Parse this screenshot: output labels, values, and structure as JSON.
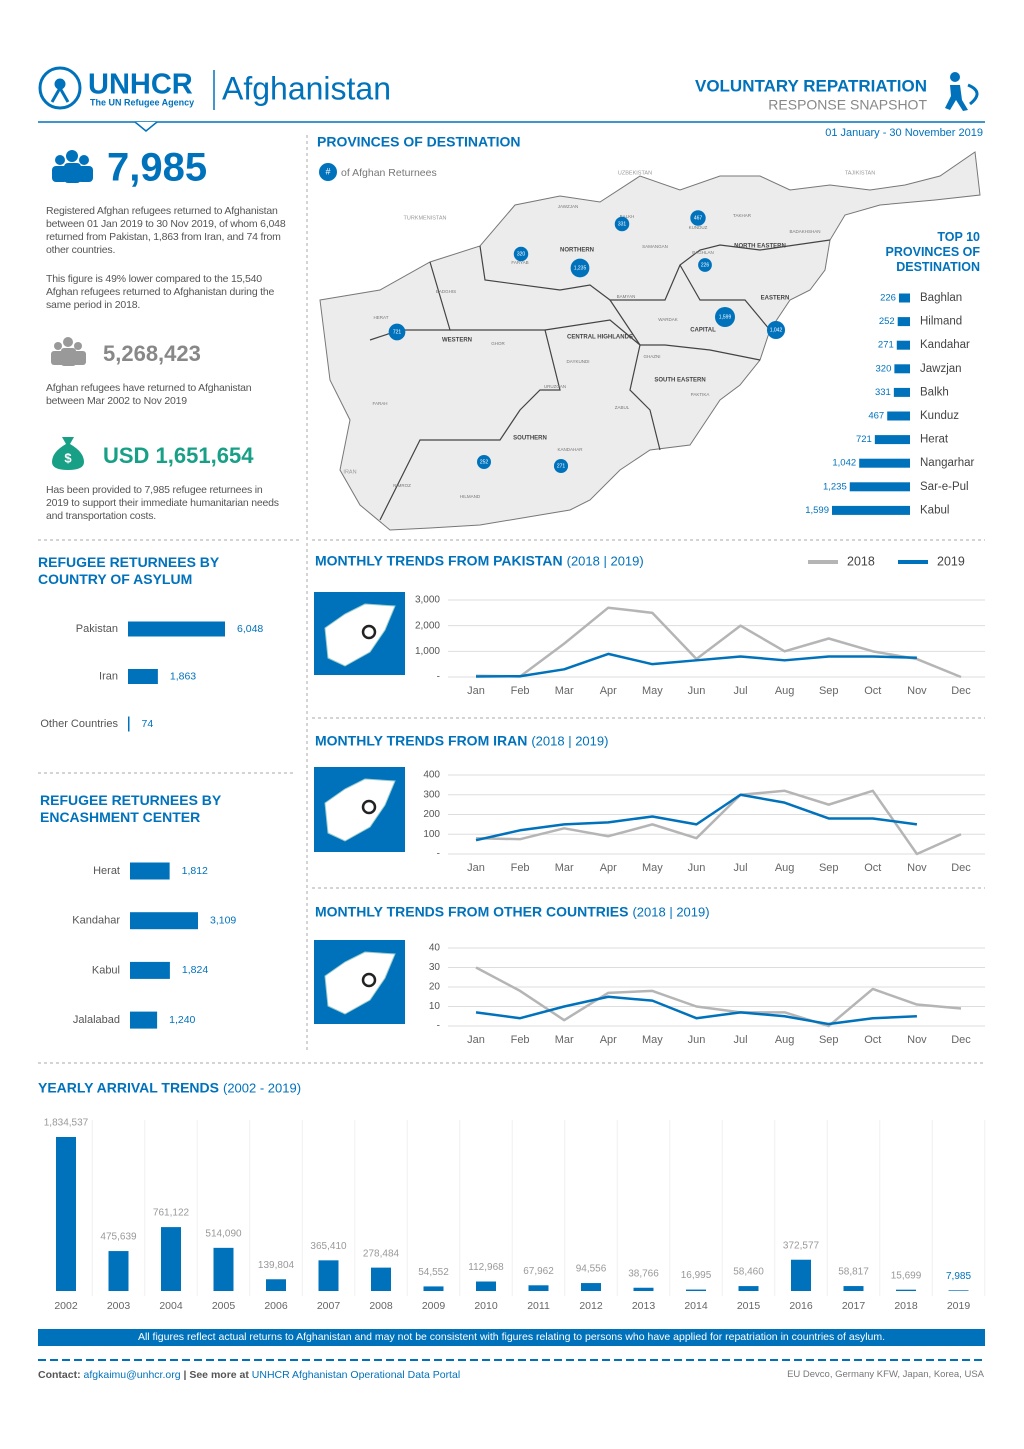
{
  "header": {
    "logo": "UNHCR",
    "logo_sub": "The UN Refugee Agency",
    "country": "Afghanistan",
    "report_title": "VOLUNTARY REPATRIATION",
    "report_subtitle": "RESPONSE SNAPSHOT",
    "period": "01 January - 30 November 2019"
  },
  "summary": [
    {
      "value": "7,985",
      "paragraphs": [
        "Registered Afghan refugees returned to Afghanistan between 01 Jan 2019 to 30 Nov 2019, of whom 6,048 returned from Pakistan, 1,863 from Iran, and 74 from other countries.",
        "This figure is 49% lower compared to the 15,540 Afghan refugees returned to Afghanistan during the same period in 2018."
      ]
    },
    {
      "value": "5,268,423",
      "paragraphs": [
        "Afghan refugees have returned to Afghanistan between Mar 2002 to Nov 2019"
      ]
    },
    {
      "value": "USD 1,651,654",
      "paragraphs": [
        "Has been provided to 7,985 refugee returnees in 2019 to support their immediate humanitarian needs and transportation costs."
      ]
    }
  ],
  "map": {
    "title": "PROVINCES OF DESTINATION",
    "legend_symbol": "#",
    "legend_text": "of Afghan Returnees",
    "countries": [
      "UZBEKISTAN",
      "TAJIKISTAN",
      "TURKMENISTAN",
      "IRAN"
    ],
    "regions": [
      "NORTHERN",
      "NORTH EASTERN",
      "WESTERN",
      "CENTRAL HIGHLANDS",
      "CAPITAL",
      "EASTERN",
      "SOUTH EASTERN",
      "SOUTHERN"
    ],
    "provinces": [
      "HERAT",
      "FARAH",
      "NIMROZ",
      "HILMAND",
      "KANDAHAR",
      "GHOR",
      "BADGHIS",
      "FARYAB",
      "JAWZJAN",
      "BALKH",
      "SAMANGAN",
      "BAGHLAN",
      "KUNDUZ",
      "TAKHAR",
      "BADAKHSHAN",
      "BAMYAN",
      "DAYKUNDI",
      "URUZGAN",
      "ZABUL",
      "GHAZNI",
      "PAKTIKA",
      "WARDAK"
    ]
  },
  "chart_data": [
    {
      "type": "bar",
      "orientation": "horizontal",
      "title": "TOP 10 PROVINCES OF DESTINATION",
      "color": "#0072bc",
      "categories": [
        "Baghlan",
        "Hilmand",
        "Kandahar",
        "Jawzjan",
        "Balkh",
        "Kunduz",
        "Herat",
        "Nangarhar",
        "Sar-e-Pul",
        "Kabul"
      ],
      "values": [
        226,
        252,
        271,
        320,
        331,
        467,
        721,
        1042,
        1235,
        1599
      ],
      "value_labels": [
        "226",
        "252",
        "271",
        "320",
        "331",
        "467",
        "721",
        "1,042",
        "1,235",
        "1,599"
      ]
    },
    {
      "type": "bar",
      "orientation": "horizontal",
      "title": "REFUGEE RETURNEES BY COUNTRY OF ASYLUM",
      "color": "#0072bc",
      "categories": [
        "Pakistan",
        "Iran",
        "Other Countries"
      ],
      "values": [
        6048,
        1863,
        74
      ],
      "value_labels": [
        "6,048",
        "1,863",
        "74"
      ]
    },
    {
      "type": "bar",
      "orientation": "horizontal",
      "title": "REFUGEE RETURNEES BY ENCASHMENT CENTER",
      "color": "#0072bc",
      "categories": [
        "Herat",
        "Kandahar",
        "Kabul",
        "Jalalabad"
      ],
      "values": [
        1812,
        3109,
        1824,
        1240
      ],
      "value_labels": [
        "1,812",
        "3,109",
        "1,824",
        "1,240"
      ]
    },
    {
      "type": "line",
      "title": "MONTHLY TRENDS FROM PAKISTAN",
      "title_suffix": "(2018 | 2019)",
      "legend": true,
      "grid": true,
      "categories": [
        "Jan",
        "Feb",
        "Mar",
        "Apr",
        "May",
        "Jun",
        "Jul",
        "Aug",
        "Sep",
        "Oct",
        "Nov",
        "Dec"
      ],
      "series": [
        {
          "name": "2018",
          "color": "#b5b5b5",
          "values": [
            50,
            20,
            1300,
            2700,
            2500,
            700,
            2000,
            1000,
            1500,
            1000,
            700,
            0
          ]
        },
        {
          "name": "2019",
          "color": "#0072bc",
          "values": [
            20,
            30,
            300,
            900,
            500,
            650,
            800,
            650,
            800,
            800,
            750,
            null
          ]
        }
      ],
      "ylim": [
        0,
        3000
      ],
      "yticks": [
        {
          "value": 0,
          "label": "-"
        },
        {
          "value": 1000,
          "label": "1,000"
        },
        {
          "value": 2000,
          "label": "2,000"
        },
        {
          "value": 3000,
          "label": "3,000"
        }
      ]
    },
    {
      "type": "line",
      "title": "MONTHLY TRENDS FROM IRAN",
      "title_suffix": "(2018 | 2019)",
      "legend": false,
      "grid": true,
      "categories": [
        "Jan",
        "Feb",
        "Mar",
        "Apr",
        "May",
        "Jun",
        "Jul",
        "Aug",
        "Sep",
        "Oct",
        "Nov",
        "Dec"
      ],
      "series": [
        {
          "name": "2018",
          "color": "#b5b5b5",
          "values": [
            80,
            75,
            130,
            90,
            150,
            80,
            300,
            320,
            250,
            320,
            0,
            100
          ]
        },
        {
          "name": "2019",
          "color": "#0072bc",
          "values": [
            70,
            120,
            150,
            160,
            190,
            150,
            300,
            260,
            180,
            180,
            150,
            null
          ]
        }
      ],
      "ylim": [
        0,
        400
      ],
      "yticks": [
        {
          "value": 0,
          "label": "-"
        },
        100,
        200,
        300,
        400
      ]
    },
    {
      "type": "line",
      "title": "MONTHLY TRENDS FROM OTHER COUNTRIES",
      "title_suffix": "(2018 | 2019)",
      "legend": false,
      "grid": true,
      "categories": [
        "Jan",
        "Feb",
        "Mar",
        "Apr",
        "May",
        "Jun",
        "Jul",
        "Aug",
        "Sep",
        "Oct",
        "Nov",
        "Dec"
      ],
      "series": [
        {
          "name": "2018",
          "color": "#b5b5b5",
          "values": [
            30,
            18,
            3,
            17,
            18,
            10,
            7,
            7,
            0,
            19,
            11,
            9
          ]
        },
        {
          "name": "2019",
          "color": "#0072bc",
          "values": [
            7,
            4,
            10,
            15,
            13,
            4,
            7,
            5,
            1,
            4,
            5,
            null
          ]
        }
      ],
      "ylim": [
        0,
        40
      ],
      "yticks": [
        {
          "value": 0,
          "label": "-"
        },
        10,
        20,
        30,
        40
      ]
    },
    {
      "type": "bar",
      "orientation": "vertical",
      "title": "YEARLY ARRIVAL TRENDS",
      "title_suffix": "(2002 - 2019)",
      "color": "#0072bc",
      "categories": [
        "2002",
        "2003",
        "2004",
        "2005",
        "2006",
        "2007",
        "2008",
        "2009",
        "2010",
        "2011",
        "2012",
        "2013",
        "2014",
        "2015",
        "2016",
        "2017",
        "2018",
        "2019"
      ],
      "values": [
        1834537,
        475639,
        761122,
        514090,
        139804,
        365410,
        278484,
        54552,
        112968,
        67962,
        94556,
        38766,
        16995,
        58460,
        372577,
        58817,
        15699,
        7985
      ],
      "value_labels": [
        "1,834,537",
        "475,639",
        "761,122",
        "514,090",
        "139,804",
        "365,410",
        "278,484",
        "54,552",
        "112,968",
        "67,962",
        "94,556",
        "38,766",
        "16,995",
        "58,460",
        "372,577",
        "58,817",
        "15,699",
        "7,985"
      ]
    }
  ],
  "footer": {
    "note": "All figures reflect actual returns to Afghanistan and may not be consistent with figures relating to persons who have applied  for repatriation in countries of asylum.",
    "contact_label": "Contact:",
    "email": "afgkaimu@unhcr.org",
    "see_more": "| See more at",
    "portal": "UNHCR Afghanistan Operational Data Portal",
    "donors": "EU Devco, Germany KFW, Japan, Korea, USA"
  }
}
